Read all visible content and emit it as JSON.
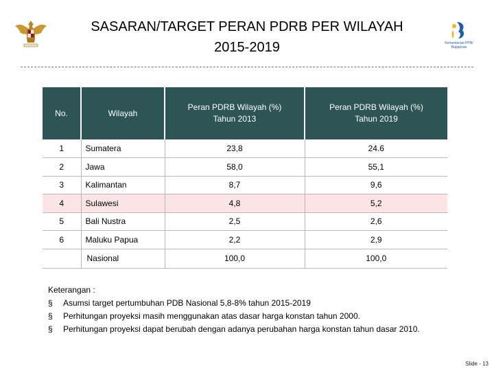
{
  "header": {
    "title_line1": "SASARAN/TARGET PERAN PDRB PER WILAYAH",
    "title_line2": "2015-2019",
    "logo_text_line1": "Kementerian PPN/",
    "logo_text_line2": "Bappenas"
  },
  "table": {
    "columns": [
      "No.",
      "Wilayah",
      "Peran PDRB Wilayah (%)",
      "Peran PDRB Wilayah (%)"
    ],
    "column_sub": [
      "",
      "",
      "Tahun 2013",
      "Tahun 2019"
    ],
    "rows": [
      {
        "no": "1",
        "wilayah": "Sumatera",
        "v2013": "23,8",
        "v2019": "24.6"
      },
      {
        "no": "2",
        "wilayah": "Jawa",
        "v2013": "58,0",
        "v2019": "55,1"
      },
      {
        "no": "3",
        "wilayah": "Kalimantan",
        "v2013": "8,7",
        "v2019": "9,6"
      },
      {
        "no": "4",
        "wilayah": "Sulawesi",
        "v2013": "4,8",
        "v2019": "5,2"
      },
      {
        "no": "5",
        "wilayah": "Bali Nustra",
        "v2013": "2,5",
        "v2019": "2,6"
      },
      {
        "no": "6",
        "wilayah": "Maluku Papua",
        "v2013": "2,2",
        "v2019": "2,9"
      }
    ],
    "total": {
      "label": "Nasional",
      "v2013": "100,0",
      "v2019": "100,0"
    }
  },
  "notes": {
    "heading": "Keterangan :",
    "bullet": "§",
    "items": [
      "Asumsi target pertumbuhan PDB Nasional 5,8-8% tahun 2015-2019",
      "Perhitungan proyeksi masih menggunakan atas dasar harga konstan tahun 2000.",
      "Perhitungan proyeksi dapat berubah dengan adanya perubahan harga konstan tahun dasar 2010."
    ]
  },
  "footer": {
    "slide": "Slide - 13"
  },
  "colors": {
    "header_bg": "#2d5556",
    "highlight_row": "#fde5e5",
    "emblem_gold": "#b8862b",
    "logo_blue": "#1f5fa8"
  }
}
